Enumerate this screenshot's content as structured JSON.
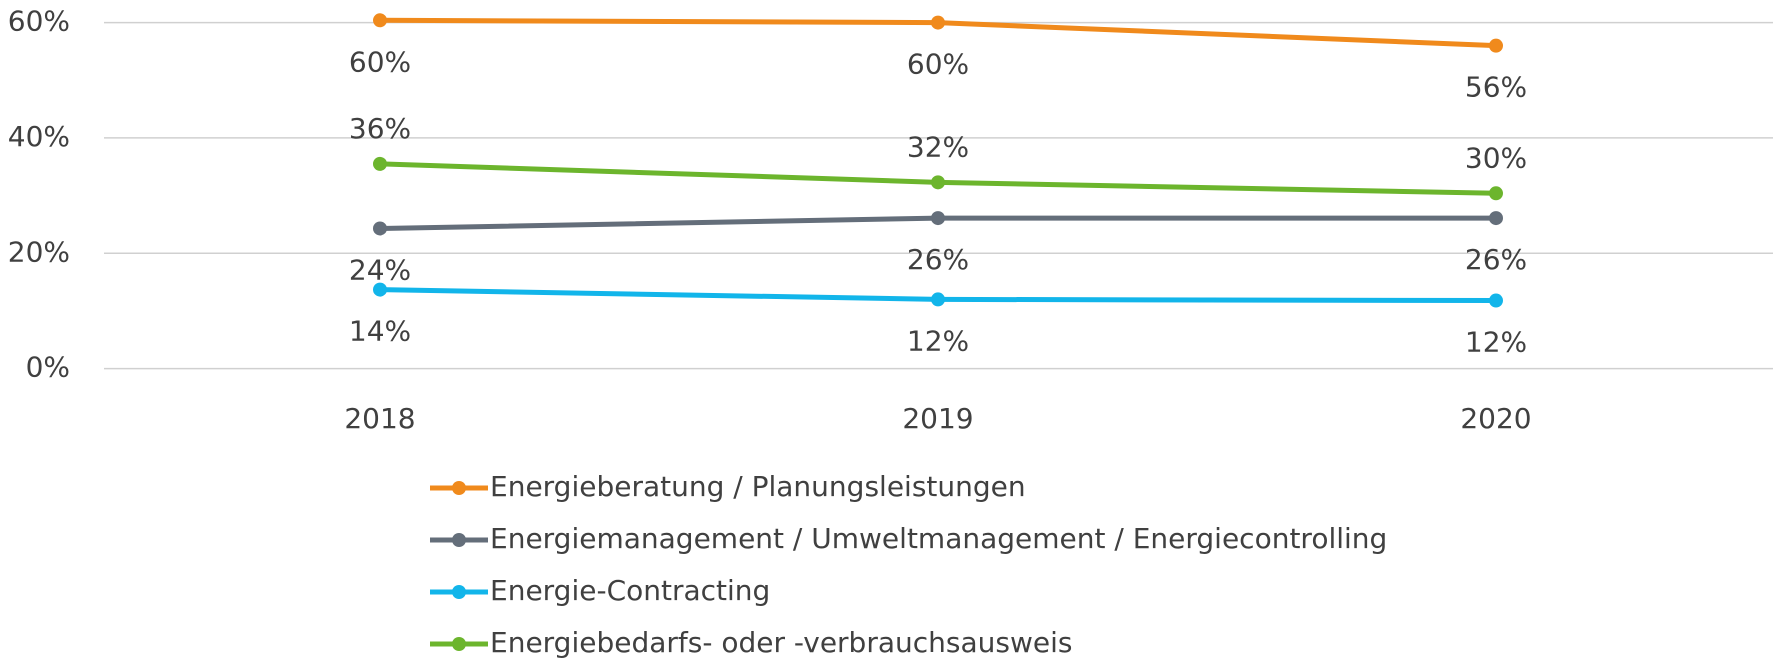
{
  "chart_data": {
    "type": "line",
    "categories": [
      "2018",
      "2019",
      "2020"
    ],
    "series": [
      {
        "name": "Energieberatung / Planungsleistungen",
        "color": "#f08a1c",
        "label_position": "below",
        "values": [
          60.4,
          60,
          56
        ],
        "value_labels": [
          "60%",
          "60%",
          "56%"
        ]
      },
      {
        "name": "Energiemanagement / Umweltmanagement / Energiecontrolling",
        "color": "#646e7a",
        "label_position": "below",
        "values": [
          24.3,
          26.1,
          26.1
        ],
        "value_labels": [
          "24%",
          "26%",
          "26%"
        ]
      },
      {
        "name": "Energie-Contracting",
        "color": "#12b5ea",
        "label_position": "below",
        "values": [
          13.7,
          12,
          11.8
        ],
        "value_labels": [
          "14%",
          "12%",
          "12%"
        ]
      },
      {
        "name": "Energiebedarfs- oder -verbrauchsausweis",
        "color": "#6cb52d",
        "label_position": "above",
        "values": [
          35.5,
          32.3,
          30.4
        ],
        "value_labels": [
          "36%",
          "32%",
          "30%"
        ]
      }
    ],
    "ylim": [
      0,
      60
    ],
    "yticks": [
      {
        "value": 0,
        "label": "0%"
      },
      {
        "value": 20,
        "label": "20%"
      },
      {
        "value": 40,
        "label": "40%"
      },
      {
        "value": 60,
        "label": "60%"
      }
    ],
    "grid": true,
    "legend": "bottom"
  }
}
